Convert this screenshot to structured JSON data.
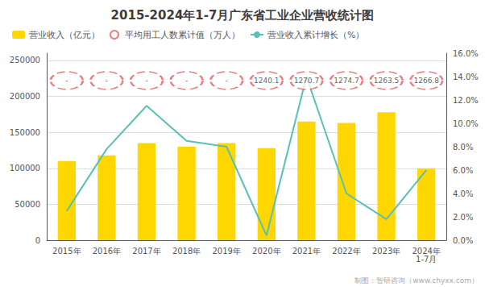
{
  "chart_data": {
    "type": "bar",
    "title": "2015-2024年1-7月广东省工业企业营收统计图",
    "categories": [
      "2015年",
      "2016年",
      "2017年",
      "2018年",
      "2019年",
      "2020年",
      "2021年",
      "2022年",
      "2023年",
      "2024年\n1-7月"
    ],
    "series": [
      {
        "name": "营业收入（亿元）",
        "type": "bar",
        "color": "#FFD700",
        "values": [
          110000,
          118000,
          135000,
          130000,
          135000,
          128000,
          165000,
          163000,
          178000,
          100000
        ]
      },
      {
        "name": "平均用工人数累计值（万人）",
        "type": "scatter",
        "color": "#E06060",
        "marker": "circle",
        "line_style": "dashed",
        "annotations": [
          {
            "x": "2015年",
            "y": 222000,
            "text": "-"
          },
          {
            "x": "2016年",
            "y": 222000,
            "text": "-"
          },
          {
            "x": "2017年",
            "y": 222000,
            "text": "-"
          },
          {
            "x": "2018年",
            "y": 222000,
            "text": "-"
          },
          {
            "x": "2019年",
            "y": 222000,
            "text": "-"
          },
          {
            "x": "2020年",
            "y": 222000,
            "text": "1240.1"
          },
          {
            "x": "2021年",
            "y": 222000,
            "text": "1270.7"
          },
          {
            "x": "2022年",
            "y": 222000,
            "text": "1274.7"
          },
          {
            "x": "2023年",
            "y": 222000,
            "text": "1263.5"
          },
          {
            "x": "2024年\n1-7月",
            "y": 222000,
            "text": "1266.8"
          }
        ]
      },
      {
        "name": "营业收入累计增长（%）",
        "type": "line",
        "axis": "y2",
        "color": "#5abfb7",
        "values": [
          0.025,
          0.078,
          0.115,
          0.085,
          0.08,
          0.004,
          0.14,
          0.04,
          0.018,
          0.06
        ]
      }
    ],
    "ylim": [
      0,
      260000
    ],
    "yticks": [
      0,
      50000,
      100000,
      150000,
      200000,
      250000
    ],
    "y2lim": [
      0.0,
      0.16
    ],
    "y2ticks": [
      {
        "value": 0.0,
        "label": "0.0%"
      },
      {
        "value": 0.02,
        "label": "2.0%"
      },
      {
        "value": 0.04,
        "label": "4.0%"
      },
      {
        "value": 0.06,
        "label": "6.0%"
      },
      {
        "value": 0.08,
        "label": "8.0%"
      },
      {
        "value": 0.1,
        "label": "10.0%"
      },
      {
        "value": 0.12,
        "label": "12.0%"
      },
      {
        "value": 0.14,
        "label": "14.0%"
      },
      {
        "value": 0.16,
        "label": "16.0%"
      }
    ],
    "grid": true,
    "legend": "top left",
    "annotations": [
      "制图：智研咨询（www.chyxx.com）"
    ]
  }
}
